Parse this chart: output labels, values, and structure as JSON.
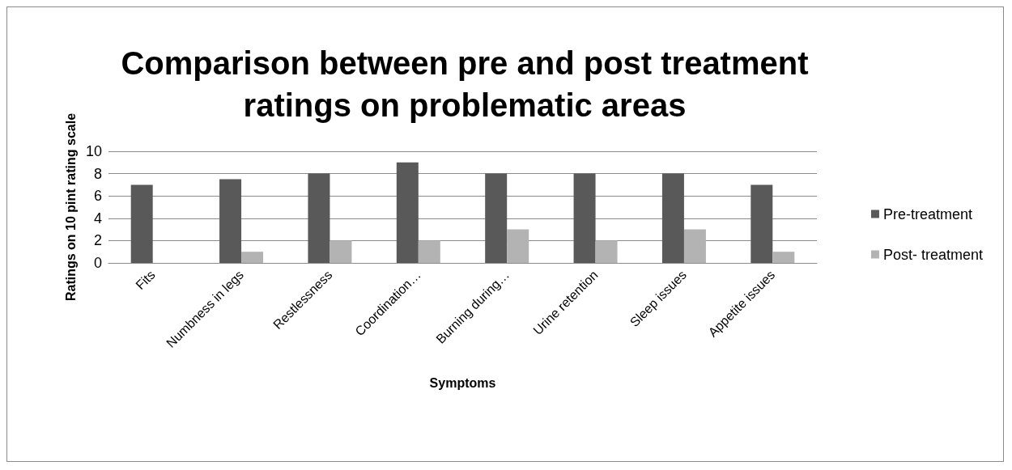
{
  "chart_data": {
    "type": "bar",
    "title": "Comparison between pre and post treatment\nratings on problematic areas",
    "xlabel": "Symptoms",
    "ylabel": "Ratings on 10 pint rating scale",
    "categories": [
      "Fits",
      "Numbness in legs",
      "Restlessness",
      "Coordination…",
      "Burning during…",
      "Urine retention",
      "Sleep issues",
      "Appetite issues"
    ],
    "series": [
      {
        "name": "Pre-treatment",
        "color": "#595959",
        "values": [
          7,
          7.5,
          8,
          9,
          8,
          8,
          8,
          7
        ]
      },
      {
        "name": "Post- treatment",
        "color": "#b3b3b3",
        "values": [
          0,
          1,
          2,
          2,
          3,
          2,
          3,
          1
        ]
      }
    ],
    "ylim": [
      0,
      10
    ],
    "yticks": [
      0,
      2,
      4,
      6,
      8,
      10
    ],
    "grid": "y",
    "legend": "right"
  }
}
